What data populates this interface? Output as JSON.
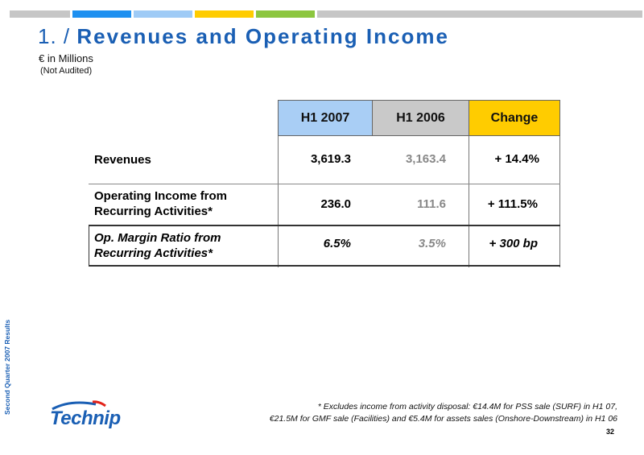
{
  "colors": {
    "top_bar": [
      "#c6c6c6",
      "#1e90f0",
      "#9fcbf6",
      "#ffcc00",
      "#8cc63f",
      "#c6c6c6"
    ],
    "accent": "#1a5fb4"
  },
  "title": {
    "number": "1. /",
    "text": "Revenues and Operating Income"
  },
  "subtitle": "€ in Millions",
  "note": "(Not Audited)",
  "table": {
    "columns": {
      "h1_2007": "H1 2007",
      "h1_2006": "H1 2006",
      "change": "Change"
    },
    "rows": [
      {
        "label_1": "Revenues",
        "label_2": "",
        "h1_2007": "3,619.3",
        "h1_2006": "3,163.4",
        "change": "+ 14.4%"
      },
      {
        "label_1": "Operating Income from",
        "label_2": "Recurring Activities*",
        "h1_2007": "236.0",
        "h1_2006": "111.6",
        "change": "+ 111.5%"
      },
      {
        "label_1": "Op. Margin Ratio from",
        "label_2": "Recurring Activities*",
        "h1_2007": "6.5%",
        "h1_2006": "3.5%",
        "change": "+ 300 bp"
      }
    ]
  },
  "footnote": {
    "line1": "* Excludes income from activity disposal: €14.4M for PSS sale (SURF) in H1 07,",
    "line2": "€21.5M for GMF sale (Facilities) and €5.4M for assets sales (Onshore-Downstream) in H1 06"
  },
  "side_label": "Second Quarter 2007 Results",
  "logo": {
    "text": "Technip",
    "icon": "technip-logo"
  },
  "page_number": "32"
}
